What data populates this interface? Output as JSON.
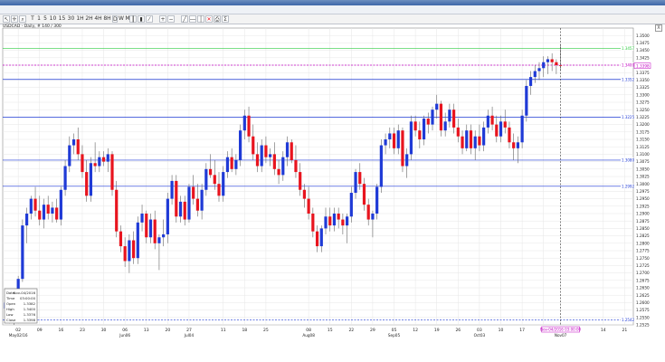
{
  "menu": [
    "Instruments",
    "Chart Type",
    "Time Scale",
    "View",
    "Edit",
    "Lines",
    "Studies",
    "Zoom",
    "Settings",
    "Help"
  ],
  "toolbar": {
    "periods": [
      "T",
      "1",
      "5",
      "10",
      "15",
      "30",
      "1H",
      "2H",
      "4H",
      "8H",
      "D",
      "W",
      "M"
    ],
    "active_period": "D"
  },
  "chart_info": "USDCAD - Daily, # 140 / 300",
  "close_glyph": "X",
  "colors": {
    "up": "#1f3ad6",
    "down": "#e8141e",
    "line_green": "#2ecc40",
    "line_blue": "#1f3ad6",
    "line_magenta": "#c000c0",
    "wick": "#666666"
  },
  "chart_data": {
    "type": "candlestick",
    "symbol": "USDCAD",
    "timeframe": "Daily",
    "ylim": [
      1.2525,
      1.3525
    ],
    "y_ticks": [
      "1.3500",
      "1.3475",
      "1.3450",
      "1.3425",
      "1.3400",
      "1.3375",
      "1.3350",
      "1.3325",
      "1.3300",
      "1.3275",
      "1.3250",
      "1.3225",
      "1.3200",
      "1.3175",
      "1.3150",
      "1.3125",
      "1.3100",
      "1.3075",
      "1.3050",
      "1.3025",
      "1.3000",
      "1.2975",
      "1.2950",
      "1.2925",
      "1.2900",
      "1.2875",
      "1.2850",
      "1.2825",
      "1.2800",
      "1.2775",
      "1.2750",
      "1.2725",
      "1.2700",
      "1.2675",
      "1.2650",
      "1.2625",
      "1.2600",
      "1.2575",
      "1.2550",
      "1.2525"
    ],
    "x_ticks": [
      {
        "label": "02",
        "sub": "May02/16",
        "i": 3
      },
      {
        "label": "09",
        "sub": "",
        "i": 8
      },
      {
        "label": "16",
        "sub": "",
        "i": 13
      },
      {
        "label": "23",
        "sub": "",
        "i": 18
      },
      {
        "label": "30",
        "sub": "",
        "i": 23
      },
      {
        "label": "06",
        "sub": "Jun06",
        "i": 28
      },
      {
        "label": "13",
        "sub": "",
        "i": 33
      },
      {
        "label": "20",
        "sub": "",
        "i": 38
      },
      {
        "label": "27",
        "sub": "Jul04",
        "i": 43
      },
      {
        "label": "11",
        "sub": "",
        "i": 51
      },
      {
        "label": "18",
        "sub": "",
        "i": 56
      },
      {
        "label": "25",
        "sub": "",
        "i": 61
      },
      {
        "label": "08",
        "sub": "Aug08",
        "i": 71
      },
      {
        "label": "15",
        "sub": "",
        "i": 76
      },
      {
        "label": "22",
        "sub": "",
        "i": 81
      },
      {
        "label": "29",
        "sub": "",
        "i": 86
      },
      {
        "label": "05",
        "sub": "Sep05",
        "i": 91
      },
      {
        "label": "12",
        "sub": "",
        "i": 96
      },
      {
        "label": "19",
        "sub": "",
        "i": 101
      },
      {
        "label": "26",
        "sub": "",
        "i": 106
      },
      {
        "label": "03",
        "sub": "Oct03",
        "i": 111
      },
      {
        "label": "10",
        "sub": "",
        "i": 116
      },
      {
        "label": "17",
        "sub": "",
        "i": 121
      },
      {
        "label": "24",
        "sub": "",
        "i": 126
      },
      {
        "label": "14",
        "sub": "",
        "i": 140
      },
      {
        "label": "21",
        "sub": "",
        "i": 145
      }
    ],
    "h_lines": [
      {
        "price": 1.3457,
        "label": "1.3457",
        "color": "#2ecc40"
      },
      {
        "price": 1.34,
        "label": "1.3400",
        "color": "#c000c0",
        "dashed": true
      },
      {
        "price": 1.3352,
        "label": "1.3352",
        "color": "#1f3ad6"
      },
      {
        "price": 1.3225,
        "label": "1.3225",
        "color": "#1f3ad6"
      },
      {
        "price": 1.308,
        "label": "1.3080",
        "color": "#1f3ad6"
      },
      {
        "price": 1.2992,
        "label": "1.2992",
        "color": "#1f3ad6"
      },
      {
        "price": 1.2542,
        "label": "1.2542",
        "color": "#1f3ad6",
        "dashed": true
      }
    ],
    "current_price": "1.3398",
    "cursor_time": "Nov-04/2016 03:00:00",
    "cursor_date_sub": "Nov07",
    "candles": [
      {
        "o": 1.258,
        "h": 1.262,
        "l": 1.254,
        "c": 1.26
      },
      {
        "o": 1.26,
        "h": 1.261,
        "l": 1.253,
        "c": 1.2545
      },
      {
        "o": 1.2545,
        "h": 1.256,
        "l": 1.2525,
        "c": 1.2535
      },
      {
        "o": 1.255,
        "h": 1.269,
        "l": 1.254,
        "c": 1.268
      },
      {
        "o": 1.268,
        "h": 1.288,
        "l": 1.267,
        "c": 1.286
      },
      {
        "o": 1.286,
        "h": 1.292,
        "l": 1.28,
        "c": 1.29
      },
      {
        "o": 1.29,
        "h": 1.296,
        "l": 1.288,
        "c": 1.295
      },
      {
        "o": 1.295,
        "h": 1.299,
        "l": 1.289,
        "c": 1.291
      },
      {
        "o": 1.291,
        "h": 1.296,
        "l": 1.286,
        "c": 1.288
      },
      {
        "o": 1.288,
        "h": 1.295,
        "l": 1.285,
        "c": 1.293
      },
      {
        "o": 1.293,
        "h": 1.296,
        "l": 1.288,
        "c": 1.29
      },
      {
        "o": 1.29,
        "h": 1.294,
        "l": 1.287,
        "c": 1.292
      },
      {
        "o": 1.292,
        "h": 1.295,
        "l": 1.287,
        "c": 1.288
      },
      {
        "o": 1.288,
        "h": 1.299,
        "l": 1.286,
        "c": 1.298
      },
      {
        "o": 1.298,
        "h": 1.308,
        "l": 1.296,
        "c": 1.306
      },
      {
        "o": 1.306,
        "h": 1.316,
        "l": 1.304,
        "c": 1.313
      },
      {
        "o": 1.313,
        "h": 1.317,
        "l": 1.31,
        "c": 1.315
      },
      {
        "o": 1.315,
        "h": 1.319,
        "l": 1.308,
        "c": 1.31
      },
      {
        "o": 1.31,
        "h": 1.313,
        "l": 1.302,
        "c": 1.304
      },
      {
        "o": 1.304,
        "h": 1.308,
        "l": 1.294,
        "c": 1.296
      },
      {
        "o": 1.296,
        "h": 1.309,
        "l": 1.294,
        "c": 1.307
      },
      {
        "o": 1.307,
        "h": 1.314,
        "l": 1.304,
        "c": 1.306
      },
      {
        "o": 1.306,
        "h": 1.311,
        "l": 1.304,
        "c": 1.309
      },
      {
        "o": 1.309,
        "h": 1.311,
        "l": 1.306,
        "c": 1.3075
      },
      {
        "o": 1.3075,
        "h": 1.312,
        "l": 1.304,
        "c": 1.31
      },
      {
        "o": 1.31,
        "h": 1.311,
        "l": 1.296,
        "c": 1.298
      },
      {
        "o": 1.298,
        "h": 1.301,
        "l": 1.282,
        "c": 1.284
      },
      {
        "o": 1.284,
        "h": 1.286,
        "l": 1.277,
        "c": 1.279
      },
      {
        "o": 1.279,
        "h": 1.282,
        "l": 1.272,
        "c": 1.274
      },
      {
        "o": 1.274,
        "h": 1.283,
        "l": 1.27,
        "c": 1.281
      },
      {
        "o": 1.281,
        "h": 1.284,
        "l": 1.273,
        "c": 1.275
      },
      {
        "o": 1.275,
        "h": 1.289,
        "l": 1.273,
        "c": 1.287
      },
      {
        "o": 1.287,
        "h": 1.293,
        "l": 1.284,
        "c": 1.29
      },
      {
        "o": 1.29,
        "h": 1.291,
        "l": 1.28,
        "c": 1.282
      },
      {
        "o": 1.282,
        "h": 1.29,
        "l": 1.28,
        "c": 1.288
      },
      {
        "o": 1.288,
        "h": 1.291,
        "l": 1.278,
        "c": 1.28
      },
      {
        "o": 1.28,
        "h": 1.283,
        "l": 1.271,
        "c": 1.282
      },
      {
        "o": 1.282,
        "h": 1.288,
        "l": 1.279,
        "c": 1.283
      },
      {
        "o": 1.283,
        "h": 1.297,
        "l": 1.28,
        "c": 1.295
      },
      {
        "o": 1.295,
        "h": 1.303,
        "l": 1.293,
        "c": 1.301
      },
      {
        "o": 1.301,
        "h": 1.303,
        "l": 1.287,
        "c": 1.289
      },
      {
        "o": 1.289,
        "h": 1.296,
        "l": 1.287,
        "c": 1.294
      },
      {
        "o": 1.294,
        "h": 1.296,
        "l": 1.286,
        "c": 1.288
      },
      {
        "o": 1.288,
        "h": 1.3,
        "l": 1.287,
        "c": 1.299
      },
      {
        "o": 1.299,
        "h": 1.303,
        "l": 1.293,
        "c": 1.295
      },
      {
        "o": 1.295,
        "h": 1.3,
        "l": 1.289,
        "c": 1.291
      },
      {
        "o": 1.291,
        "h": 1.3,
        "l": 1.288,
        "c": 1.298
      },
      {
        "o": 1.298,
        "h": 1.307,
        "l": 1.296,
        "c": 1.305
      },
      {
        "o": 1.305,
        "h": 1.31,
        "l": 1.302,
        "c": 1.303
      },
      {
        "o": 1.303,
        "h": 1.308,
        "l": 1.298,
        "c": 1.3
      },
      {
        "o": 1.3,
        "h": 1.304,
        "l": 1.294,
        "c": 1.296
      },
      {
        "o": 1.296,
        "h": 1.306,
        "l": 1.294,
        "c": 1.304
      },
      {
        "o": 1.304,
        "h": 1.311,
        "l": 1.302,
        "c": 1.309
      },
      {
        "o": 1.309,
        "h": 1.312,
        "l": 1.304,
        "c": 1.305
      },
      {
        "o": 1.305,
        "h": 1.31,
        "l": 1.303,
        "c": 1.308
      },
      {
        "o": 1.308,
        "h": 1.32,
        "l": 1.306,
        "c": 1.318
      },
      {
        "o": 1.318,
        "h": 1.325,
        "l": 1.315,
        "c": 1.323
      },
      {
        "o": 1.323,
        "h": 1.326,
        "l": 1.314,
        "c": 1.316
      },
      {
        "o": 1.316,
        "h": 1.32,
        "l": 1.308,
        "c": 1.31
      },
      {
        "o": 1.31,
        "h": 1.314,
        "l": 1.304,
        "c": 1.306
      },
      {
        "o": 1.306,
        "h": 1.315,
        "l": 1.304,
        "c": 1.313
      },
      {
        "o": 1.313,
        "h": 1.316,
        "l": 1.307,
        "c": 1.309
      },
      {
        "o": 1.309,
        "h": 1.312,
        "l": 1.306,
        "c": 1.31
      },
      {
        "o": 1.31,
        "h": 1.314,
        "l": 1.303,
        "c": 1.305
      },
      {
        "o": 1.305,
        "h": 1.308,
        "l": 1.3,
        "c": 1.303
      },
      {
        "o": 1.303,
        "h": 1.311,
        "l": 1.301,
        "c": 1.309
      },
      {
        "o": 1.309,
        "h": 1.316,
        "l": 1.306,
        "c": 1.314
      },
      {
        "o": 1.314,
        "h": 1.315,
        "l": 1.307,
        "c": 1.308
      },
      {
        "o": 1.308,
        "h": 1.313,
        "l": 1.302,
        "c": 1.304
      },
      {
        "o": 1.304,
        "h": 1.307,
        "l": 1.296,
        "c": 1.298
      },
      {
        "o": 1.298,
        "h": 1.3,
        "l": 1.292,
        "c": 1.295
      },
      {
        "o": 1.295,
        "h": 1.299,
        "l": 1.288,
        "c": 1.29
      },
      {
        "o": 1.29,
        "h": 1.292,
        "l": 1.282,
        "c": 1.284
      },
      {
        "o": 1.284,
        "h": 1.286,
        "l": 1.277,
        "c": 1.279
      },
      {
        "o": 1.279,
        "h": 1.286,
        "l": 1.277,
        "c": 1.285
      },
      {
        "o": 1.285,
        "h": 1.292,
        "l": 1.283,
        "c": 1.289
      },
      {
        "o": 1.289,
        "h": 1.292,
        "l": 1.284,
        "c": 1.286
      },
      {
        "o": 1.286,
        "h": 1.292,
        "l": 1.284,
        "c": 1.29
      },
      {
        "o": 1.29,
        "h": 1.292,
        "l": 1.285,
        "c": 1.288
      },
      {
        "o": 1.288,
        "h": 1.29,
        "l": 1.283,
        "c": 1.286
      },
      {
        "o": 1.286,
        "h": 1.29,
        "l": 1.28,
        "c": 1.289
      },
      {
        "o": 1.289,
        "h": 1.299,
        "l": 1.287,
        "c": 1.297
      },
      {
        "o": 1.297,
        "h": 1.305,
        "l": 1.295,
        "c": 1.304
      },
      {
        "o": 1.304,
        "h": 1.307,
        "l": 1.298,
        "c": 1.3
      },
      {
        "o": 1.3,
        "h": 1.302,
        "l": 1.291,
        "c": 1.293
      },
      {
        "o": 1.293,
        "h": 1.295,
        "l": 1.286,
        "c": 1.288
      },
      {
        "o": 1.288,
        "h": 1.291,
        "l": 1.282,
        "c": 1.29
      },
      {
        "o": 1.29,
        "h": 1.3,
        "l": 1.288,
        "c": 1.299
      },
      {
        "o": 1.299,
        "h": 1.315,
        "l": 1.297,
        "c": 1.313
      },
      {
        "o": 1.313,
        "h": 1.317,
        "l": 1.31,
        "c": 1.315
      },
      {
        "o": 1.315,
        "h": 1.319,
        "l": 1.312,
        "c": 1.317
      },
      {
        "o": 1.317,
        "h": 1.319,
        "l": 1.31,
        "c": 1.312
      },
      {
        "o": 1.312,
        "h": 1.32,
        "l": 1.31,
        "c": 1.318
      },
      {
        "o": 1.318,
        "h": 1.319,
        "l": 1.304,
        "c": 1.306
      },
      {
        "o": 1.306,
        "h": 1.312,
        "l": 1.302,
        "c": 1.31
      },
      {
        "o": 1.31,
        "h": 1.323,
        "l": 1.308,
        "c": 1.321
      },
      {
        "o": 1.321,
        "h": 1.323,
        "l": 1.316,
        "c": 1.318
      },
      {
        "o": 1.318,
        "h": 1.321,
        "l": 1.312,
        "c": 1.315
      },
      {
        "o": 1.315,
        "h": 1.323,
        "l": 1.313,
        "c": 1.322
      },
      {
        "o": 1.322,
        "h": 1.324,
        "l": 1.317,
        "c": 1.32
      },
      {
        "o": 1.32,
        "h": 1.326,
        "l": 1.318,
        "c": 1.325
      },
      {
        "o": 1.325,
        "h": 1.33,
        "l": 1.322,
        "c": 1.327
      },
      {
        "o": 1.327,
        "h": 1.328,
        "l": 1.316,
        "c": 1.318
      },
      {
        "o": 1.318,
        "h": 1.324,
        "l": 1.316,
        "c": 1.321
      },
      {
        "o": 1.321,
        "h": 1.327,
        "l": 1.319,
        "c": 1.325
      },
      {
        "o": 1.325,
        "h": 1.327,
        "l": 1.317,
        "c": 1.319
      },
      {
        "o": 1.319,
        "h": 1.322,
        "l": 1.314,
        "c": 1.316
      },
      {
        "o": 1.316,
        "h": 1.318,
        "l": 1.31,
        "c": 1.312
      },
      {
        "o": 1.312,
        "h": 1.32,
        "l": 1.311,
        "c": 1.318
      },
      {
        "o": 1.318,
        "h": 1.32,
        "l": 1.31,
        "c": 1.312
      },
      {
        "o": 1.312,
        "h": 1.318,
        "l": 1.308,
        "c": 1.316
      },
      {
        "o": 1.316,
        "h": 1.32,
        "l": 1.311,
        "c": 1.313
      },
      {
        "o": 1.313,
        "h": 1.321,
        "l": 1.311,
        "c": 1.319
      },
      {
        "o": 1.319,
        "h": 1.325,
        "l": 1.317,
        "c": 1.323
      },
      {
        "o": 1.323,
        "h": 1.326,
        "l": 1.318,
        "c": 1.32
      },
      {
        "o": 1.32,
        "h": 1.323,
        "l": 1.314,
        "c": 1.316
      },
      {
        "o": 1.316,
        "h": 1.323,
        "l": 1.314,
        "c": 1.321
      },
      {
        "o": 1.321,
        "h": 1.325,
        "l": 1.317,
        "c": 1.319
      },
      {
        "o": 1.319,
        "h": 1.321,
        "l": 1.312,
        "c": 1.314
      },
      {
        "o": 1.314,
        "h": 1.317,
        "l": 1.308,
        "c": 1.312
      },
      {
        "o": 1.312,
        "h": 1.316,
        "l": 1.307,
        "c": 1.314
      },
      {
        "o": 1.314,
        "h": 1.325,
        "l": 1.312,
        "c": 1.323
      },
      {
        "o": 1.323,
        "h": 1.335,
        "l": 1.321,
        "c": 1.333
      },
      {
        "o": 1.333,
        "h": 1.338,
        "l": 1.33,
        "c": 1.336
      },
      {
        "o": 1.336,
        "h": 1.34,
        "l": 1.334,
        "c": 1.338
      },
      {
        "o": 1.338,
        "h": 1.341,
        "l": 1.335,
        "c": 1.339
      },
      {
        "o": 1.339,
        "h": 1.343,
        "l": 1.336,
        "c": 1.341
      },
      {
        "o": 1.341,
        "h": 1.343,
        "l": 1.337,
        "c": 1.342
      },
      {
        "o": 1.342,
        "h": 1.344,
        "l": 1.338,
        "c": 1.341
      },
      {
        "o": 1.341,
        "h": 1.342,
        "l": 1.337,
        "c": 1.34
      },
      {
        "o": 1.34,
        "h": 1.347,
        "l": 1.338,
        "c": 1.3398
      }
    ]
  },
  "ohlc_box": {
    "date": {
      "label": "Date",
      "value": "Nov-04/2016"
    },
    "time": {
      "label": "Time",
      "value": "03:00:00"
    },
    "open": {
      "label": "Open",
      "value": "1.3382"
    },
    "high": {
      "label": "High",
      "value": "1.3400"
    },
    "low": {
      "label": "Low",
      "value": "1.3376"
    },
    "close": {
      "label": "Close",
      "value": "1.3398"
    }
  }
}
